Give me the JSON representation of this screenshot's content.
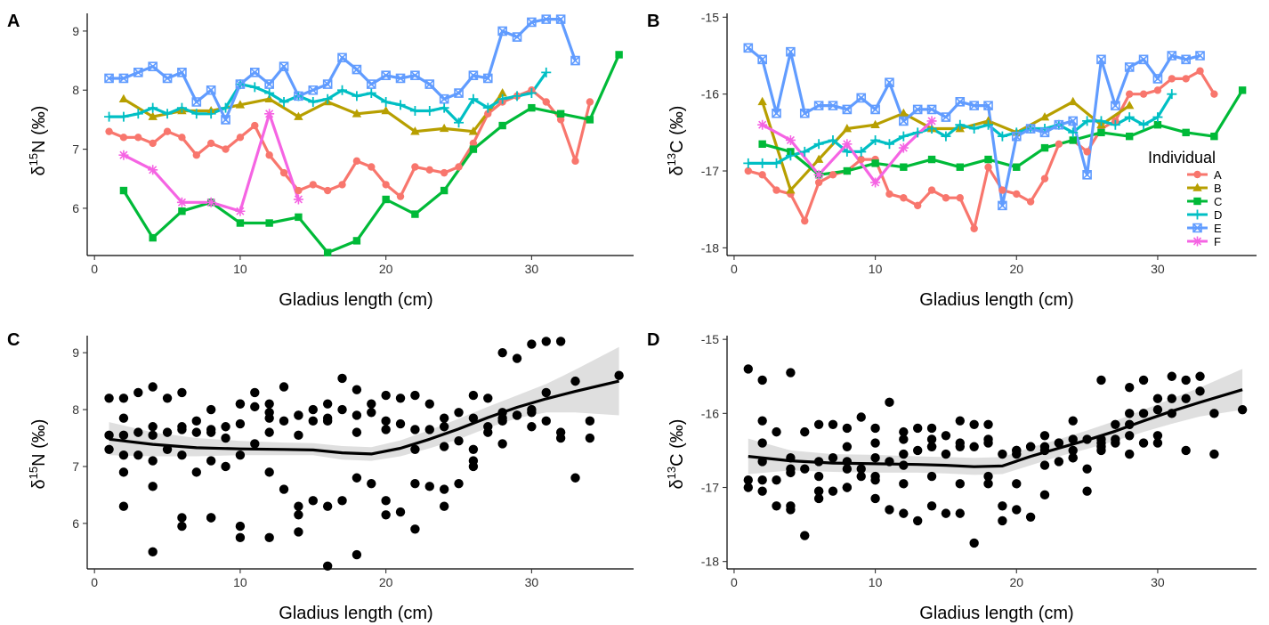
{
  "figure": {
    "panels": [
      {
        "id": "A",
        "letter": "A"
      },
      {
        "id": "B",
        "letter": "B"
      },
      {
        "id": "C",
        "letter": "C"
      },
      {
        "id": "D",
        "letter": "D"
      }
    ]
  },
  "chart_data": [
    {
      "panel": "A",
      "type": "line",
      "xlabel": "Gladius length (cm)",
      "ylabel_main": "δ",
      "ylabel_sup": "15",
      "ylabel_rest": "N (‰)",
      "xlim": [
        -0.5,
        37
      ],
      "ylim": [
        5.2,
        9.3
      ],
      "xticks": [
        0,
        10,
        20,
        30
      ],
      "yticks": [
        6,
        7,
        8,
        9
      ],
      "series": [
        {
          "name": "A",
          "color": "#F8766D",
          "marker": "circle",
          "x": [
            1,
            2,
            3,
            4,
            5,
            6,
            7,
            8,
            9,
            10,
            11,
            12,
            13,
            14,
            15,
            16,
            17,
            18,
            19,
            20,
            21,
            22,
            23,
            24,
            25,
            26,
            27,
            28,
            29,
            30,
            31,
            32,
            33,
            34
          ],
          "y": [
            7.3,
            7.2,
            7.2,
            7.1,
            7.3,
            7.2,
            6.9,
            7.1,
            7.0,
            7.2,
            7.4,
            6.9,
            6.6,
            6.3,
            6.4,
            6.3,
            6.4,
            6.8,
            6.7,
            6.4,
            6.2,
            6.7,
            6.65,
            6.6,
            6.7,
            7.1,
            7.6,
            7.8,
            7.9,
            8.0,
            7.8,
            7.5,
            6.8,
            7.8
          ]
        },
        {
          "name": "B",
          "color": "#B79F00",
          "marker": "triangle",
          "x": [
            2,
            4,
            6,
            8,
            10,
            12,
            14,
            16,
            18,
            20,
            22,
            24,
            26,
            28
          ],
          "y": [
            7.85,
            7.55,
            7.65,
            7.65,
            7.75,
            7.85,
            7.55,
            7.8,
            7.6,
            7.65,
            7.3,
            7.35,
            7.3,
            7.95
          ]
        },
        {
          "name": "C",
          "color": "#00BA38",
          "marker": "square",
          "x": [
            2,
            4,
            6,
            8,
            10,
            12,
            14,
            16,
            18,
            20,
            22,
            24,
            26,
            28,
            30,
            32,
            34,
            36
          ],
          "y": [
            6.3,
            5.5,
            5.95,
            6.1,
            5.75,
            5.75,
            5.85,
            5.25,
            5.45,
            6.15,
            5.9,
            6.3,
            7.0,
            7.4,
            7.7,
            7.6,
            7.5,
            8.6
          ]
        },
        {
          "name": "D",
          "color": "#00BFC4",
          "marker": "plus",
          "x": [
            1,
            2,
            3,
            4,
            5,
            6,
            7,
            8,
            9,
            10,
            11,
            12,
            13,
            14,
            15,
            16,
            17,
            18,
            19,
            20,
            21,
            22,
            23,
            24,
            25,
            26,
            27,
            28,
            29,
            30,
            31
          ],
          "y": [
            7.55,
            7.55,
            7.6,
            7.7,
            7.6,
            7.7,
            7.6,
            7.6,
            7.7,
            8.1,
            8.05,
            7.95,
            7.8,
            7.9,
            7.8,
            7.85,
            8.0,
            7.9,
            7.95,
            7.8,
            7.75,
            7.65,
            7.65,
            7.7,
            7.45,
            7.85,
            7.7,
            7.85,
            7.9,
            7.95,
            8.3
          ]
        },
        {
          "name": "E",
          "color": "#619CFF",
          "marker": "boxx",
          "x": [
            1,
            2,
            3,
            4,
            5,
            6,
            7,
            8,
            9,
            10,
            11,
            12,
            13,
            14,
            15,
            16,
            17,
            18,
            19,
            20,
            21,
            22,
            23,
            24,
            25,
            26,
            27,
            28,
            29,
            30,
            31,
            32,
            33
          ],
          "y": [
            8.2,
            8.2,
            8.3,
            8.4,
            8.2,
            8.3,
            7.8,
            8.0,
            7.5,
            8.1,
            8.3,
            8.1,
            8.4,
            7.9,
            8.0,
            8.1,
            8.55,
            8.35,
            8.1,
            8.25,
            8.2,
            8.25,
            8.1,
            7.85,
            7.95,
            8.25,
            8.2,
            9.0,
            8.9,
            9.15,
            9.2,
            9.2,
            8.5
          ]
        },
        {
          "name": "F",
          "color": "#F564E3",
          "marker": "star",
          "x": [
            2,
            4,
            6,
            8,
            10,
            12,
            14
          ],
          "y": [
            6.9,
            6.65,
            6.1,
            6.1,
            5.95,
            7.6,
            6.15
          ]
        }
      ]
    },
    {
      "panel": "B",
      "type": "line",
      "xlabel": "Gladius length (cm)",
      "ylabel_main": "δ",
      "ylabel_sup": "13",
      "ylabel_rest": "C (‰)",
      "xlim": [
        -0.5,
        37
      ],
      "ylim": [
        -18.1,
        -14.95
      ],
      "xticks": [
        0,
        10,
        20,
        30
      ],
      "yticks": [
        -18,
        -17,
        -16,
        -15
      ],
      "legend": {
        "title": "Individual",
        "position": "right",
        "entries": [
          "A",
          "B",
          "C",
          "D",
          "E",
          "F"
        ]
      },
      "series": [
        {
          "name": "A",
          "color": "#F8766D",
          "marker": "circle",
          "x": [
            1,
            2,
            3,
            4,
            5,
            6,
            7,
            8,
            9,
            10,
            11,
            12,
            13,
            14,
            15,
            16,
            17,
            18,
            19,
            20,
            21,
            22,
            23,
            24,
            25,
            26,
            27,
            28,
            29,
            30,
            31,
            32,
            33,
            34
          ],
          "y": [
            -17.0,
            -17.05,
            -17.25,
            -17.3,
            -17.65,
            -17.15,
            -17.05,
            -17.0,
            -16.85,
            -16.85,
            -17.3,
            -17.35,
            -17.45,
            -17.25,
            -17.35,
            -17.35,
            -17.75,
            -16.95,
            -17.25,
            -17.3,
            -17.4,
            -17.1,
            -16.65,
            -16.6,
            -16.75,
            -16.45,
            -16.35,
            -16.0,
            -16.0,
            -15.95,
            -15.8,
            -15.8,
            -15.7,
            -16.0
          ]
        },
        {
          "name": "B",
          "color": "#B79F00",
          "marker": "triangle",
          "x": [
            2,
            4,
            6,
            8,
            10,
            12,
            14,
            16,
            18,
            20,
            22,
            24,
            26,
            28
          ],
          "y": [
            -16.1,
            -17.25,
            -16.85,
            -16.45,
            -16.4,
            -16.25,
            -16.45,
            -16.45,
            -16.35,
            -16.5,
            -16.3,
            -16.1,
            -16.4,
            -16.15
          ]
        },
        {
          "name": "C",
          "color": "#00BA38",
          "marker": "square",
          "x": [
            2,
            4,
            6,
            8,
            10,
            12,
            14,
            16,
            18,
            20,
            22,
            24,
            26,
            28,
            30,
            32,
            34,
            36
          ],
          "y": [
            -16.65,
            -16.75,
            -17.05,
            -17.0,
            -16.9,
            -16.95,
            -16.85,
            -16.95,
            -16.85,
            -16.95,
            -16.7,
            -16.6,
            -16.5,
            -16.55,
            -16.4,
            -16.5,
            -16.55,
            -15.95
          ]
        },
        {
          "name": "D",
          "color": "#00BFC4",
          "marker": "plus",
          "x": [
            1,
            2,
            3,
            4,
            5,
            6,
            7,
            8,
            9,
            10,
            11,
            12,
            13,
            14,
            15,
            16,
            17,
            18,
            19,
            20,
            21,
            22,
            23,
            24,
            25,
            26,
            27,
            28,
            29,
            30,
            31
          ],
          "y": [
            -16.9,
            -16.9,
            -16.9,
            -16.8,
            -16.75,
            -16.65,
            -16.6,
            -16.75,
            -16.75,
            -16.6,
            -16.65,
            -16.55,
            -16.5,
            -16.45,
            -16.55,
            -16.4,
            -16.45,
            -16.4,
            -16.55,
            -16.5,
            -16.45,
            -16.45,
            -16.4,
            -16.5,
            -16.35,
            -16.35,
            -16.4,
            -16.3,
            -16.4,
            -16.3,
            -16.0
          ]
        },
        {
          "name": "E",
          "color": "#619CFF",
          "marker": "boxx",
          "x": [
            1,
            2,
            3,
            4,
            5,
            6,
            7,
            8,
            9,
            10,
            11,
            12,
            13,
            14,
            15,
            16,
            17,
            18,
            19,
            20,
            21,
            22,
            23,
            24,
            25,
            26,
            27,
            28,
            29,
            30,
            31,
            32,
            33
          ],
          "y": [
            -15.4,
            -15.55,
            -16.25,
            -15.45,
            -16.25,
            -16.15,
            -16.15,
            -16.2,
            -16.05,
            -16.2,
            -15.85,
            -16.35,
            -16.2,
            -16.2,
            -16.3,
            -16.1,
            -16.15,
            -16.15,
            -17.45,
            -16.55,
            -16.45,
            -16.5,
            -16.4,
            -16.35,
            -17.05,
            -15.55,
            -16.15,
            -15.65,
            -15.55,
            -15.8,
            -15.5,
            -15.55,
            -15.5
          ]
        },
        {
          "name": "F",
          "color": "#F564E3",
          "marker": "star",
          "x": [
            2,
            4,
            6,
            8,
            10,
            12,
            14
          ],
          "y": [
            -16.4,
            -16.6,
            -17.05,
            -16.65,
            -17.15,
            -16.7,
            -16.35
          ]
        }
      ]
    },
    {
      "panel": "C",
      "type": "scatter",
      "xlabel": "Gladius length (cm)",
      "ylabel_main": "δ",
      "ylabel_sup": "15",
      "ylabel_rest": "N (‰)",
      "xlim": [
        -0.5,
        37
      ],
      "ylim": [
        5.2,
        9.3
      ],
      "xticks": [
        0,
        10,
        20,
        30
      ],
      "yticks": [
        6,
        7,
        8,
        9
      ],
      "smooth": {
        "x": [
          1,
          4,
          7,
          10,
          13,
          15,
          17,
          19,
          21,
          23,
          25,
          27,
          29,
          31,
          33,
          36
        ],
        "y": [
          7.48,
          7.39,
          7.33,
          7.31,
          7.3,
          7.29,
          7.24,
          7.22,
          7.32,
          7.48,
          7.66,
          7.86,
          8.04,
          8.19,
          8.32,
          8.5
        ],
        "lower": [
          7.2,
          7.18,
          7.18,
          7.2,
          7.2,
          7.2,
          7.12,
          7.1,
          7.18,
          7.32,
          7.48,
          7.68,
          7.85,
          7.95,
          7.95,
          7.9
        ],
        "upper": [
          7.78,
          7.6,
          7.5,
          7.45,
          7.42,
          7.41,
          7.36,
          7.34,
          7.46,
          7.64,
          7.84,
          8.05,
          8.25,
          8.45,
          8.7,
          9.1
        ]
      }
    },
    {
      "panel": "D",
      "type": "scatter",
      "xlabel": "Gladius length (cm)",
      "ylabel_main": "δ",
      "ylabel_sup": "13",
      "ylabel_rest": "C (‰)",
      "xlim": [
        -0.5,
        37
      ],
      "ylim": [
        -18.1,
        -14.95
      ],
      "xticks": [
        0,
        10,
        20,
        30
      ],
      "yticks": [
        -18,
        -17,
        -16,
        -15
      ],
      "smooth": {
        "x": [
          1,
          4,
          7,
          10,
          13,
          15,
          17,
          19,
          21,
          23,
          25,
          27,
          29,
          31,
          33,
          36
        ],
        "y": [
          -16.58,
          -16.64,
          -16.67,
          -16.68,
          -16.69,
          -16.7,
          -16.72,
          -16.71,
          -16.58,
          -16.47,
          -16.36,
          -16.24,
          -16.1,
          -15.97,
          -15.85,
          -15.68
        ],
        "lower": [
          -16.82,
          -16.77,
          -16.79,
          -16.8,
          -16.8,
          -16.81,
          -16.83,
          -16.82,
          -16.7,
          -16.58,
          -16.48,
          -16.37,
          -16.25,
          -16.14,
          -16.04,
          -15.95
        ],
        "upper": [
          -16.34,
          -16.5,
          -16.55,
          -16.56,
          -16.58,
          -16.59,
          -16.6,
          -16.59,
          -16.46,
          -16.35,
          -16.23,
          -16.1,
          -15.95,
          -15.8,
          -15.65,
          -15.4
        ]
      }
    }
  ]
}
